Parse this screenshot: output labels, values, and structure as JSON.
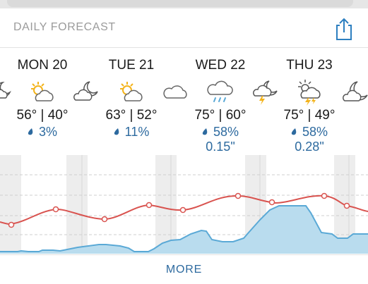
{
  "header": {
    "title": "DAILY FORECAST",
    "share_icon": "share-icon"
  },
  "days": [
    {
      "label": "MON 20",
      "temps": "56° | 40°",
      "precip": "3%",
      "icon": "partly-sunny-icon"
    },
    {
      "label": "TUE 21",
      "temps": "63° | 52°",
      "precip": "11%",
      "icon": "partly-sunny-icon"
    },
    {
      "label": "WED 22",
      "temps": "75° | 60°",
      "precip": "58%",
      "amount": "0.15\"",
      "icon": "rain-cloud-icon"
    },
    {
      "label": "THU 23",
      "temps": "75° | 49°",
      "precip": "58%",
      "amount": "0.28\"",
      "icon": "thunderstorm-sun-icon"
    }
  ],
  "night_icons": [
    "partly-cloudy-night-icon",
    "partly-cloudy-night-icon",
    "cloud-icon",
    "thunderstorm-night-icon",
    "crescent-moon-icon"
  ],
  "footer": {
    "more_label": "MORE"
  },
  "colors": {
    "temperature_line": "#d9534f",
    "precip_fill": "#b9dcee",
    "precip_line": "#5aa9d6",
    "accent": "#2d6a9f"
  }
}
